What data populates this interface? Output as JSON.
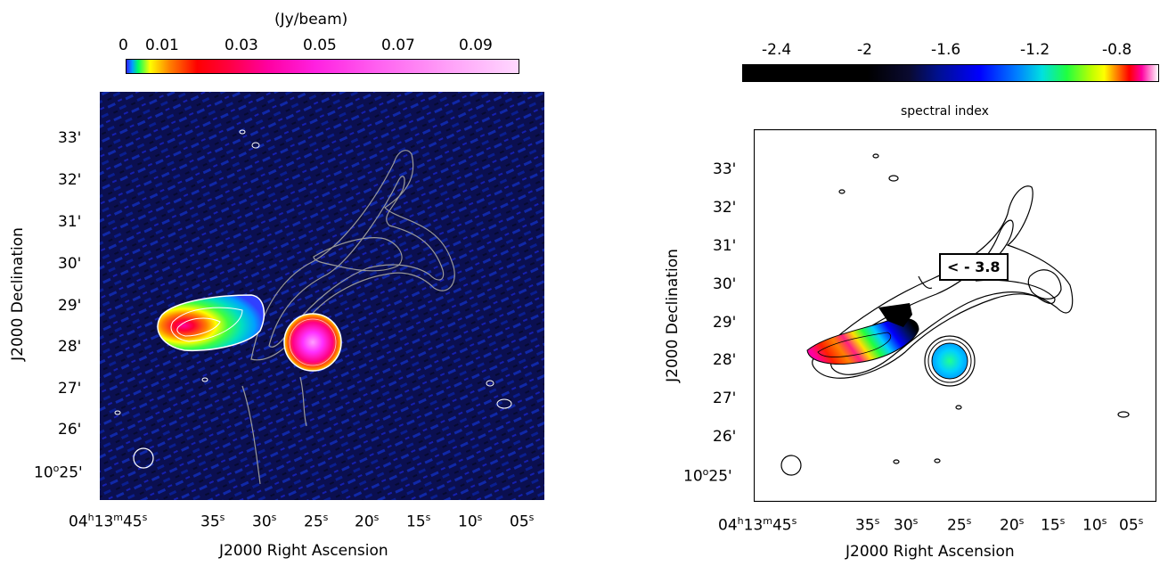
{
  "left_panel": {
    "colorbar": {
      "unit_label": "(Jy/beam)",
      "tick_labels": [
        "0",
        "0.01",
        "0.03",
        "0.05",
        "0.07",
        "0.09"
      ]
    },
    "y_ticks": [
      "33'",
      "32'",
      "31'",
      "30'",
      "29'",
      "28'",
      "27'",
      "26'",
      "10°25'"
    ],
    "x_ticks": [
      "04h13m45s",
      "35s",
      "30s",
      "25s",
      "20s",
      "15s",
      "10s",
      "05s"
    ],
    "y_axis_title": "J2000 Declination",
    "x_axis_title": "J2000 Right Ascension"
  },
  "right_panel": {
    "colorbar": {
      "tick_labels": [
        "-2.4",
        "-2",
        "-1.6",
        "-1.2",
        "-0.8"
      ]
    },
    "title": "spectral index",
    "annotation": "< - 3.8",
    "y_ticks": [
      "33'",
      "32'",
      "31'",
      "30'",
      "29'",
      "28'",
      "27'",
      "26'",
      "10°25'"
    ],
    "x_ticks": [
      "04h13m45s",
      "35s",
      "30s",
      "25s",
      "20s",
      "15s",
      "10s",
      "05s"
    ],
    "y_axis_title": "J2000 Declination",
    "x_axis_title": "J2000 Right Ascension"
  },
  "colors": {
    "background_map": "#0a0f4a",
    "contour_gray": "#9a9a9a",
    "contour_white": "#ffffff",
    "contour_black": "#000000"
  }
}
